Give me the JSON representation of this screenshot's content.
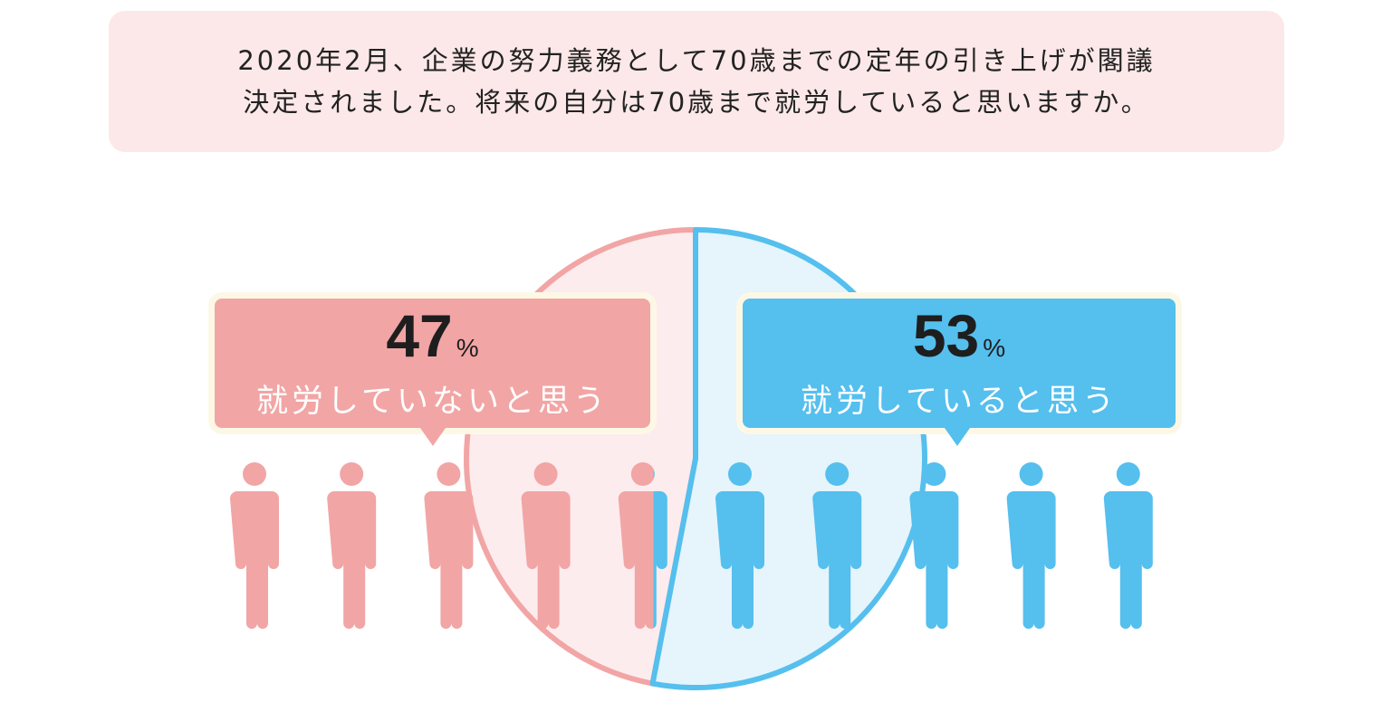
{
  "question": {
    "line1": "2020年2月、企業の努力義務として70歳までの定年の引き上げが閣議",
    "line2": "決定されました。将来の自分は70歳まで就労していると思いますか。"
  },
  "chart_data": {
    "type": "pie",
    "title": "将来の自分は70歳まで就労していると思いますか。",
    "slices": [
      {
        "label": "就労していないと思う",
        "value": 47,
        "unit": "%",
        "color": "#f2a5a5",
        "fill": "#fcecee"
      },
      {
        "label": "就労していると思う",
        "value": 53,
        "unit": "%",
        "color": "#55bfee",
        "fill": "#e6f4fb"
      }
    ],
    "pictogram_total": 10
  }
}
